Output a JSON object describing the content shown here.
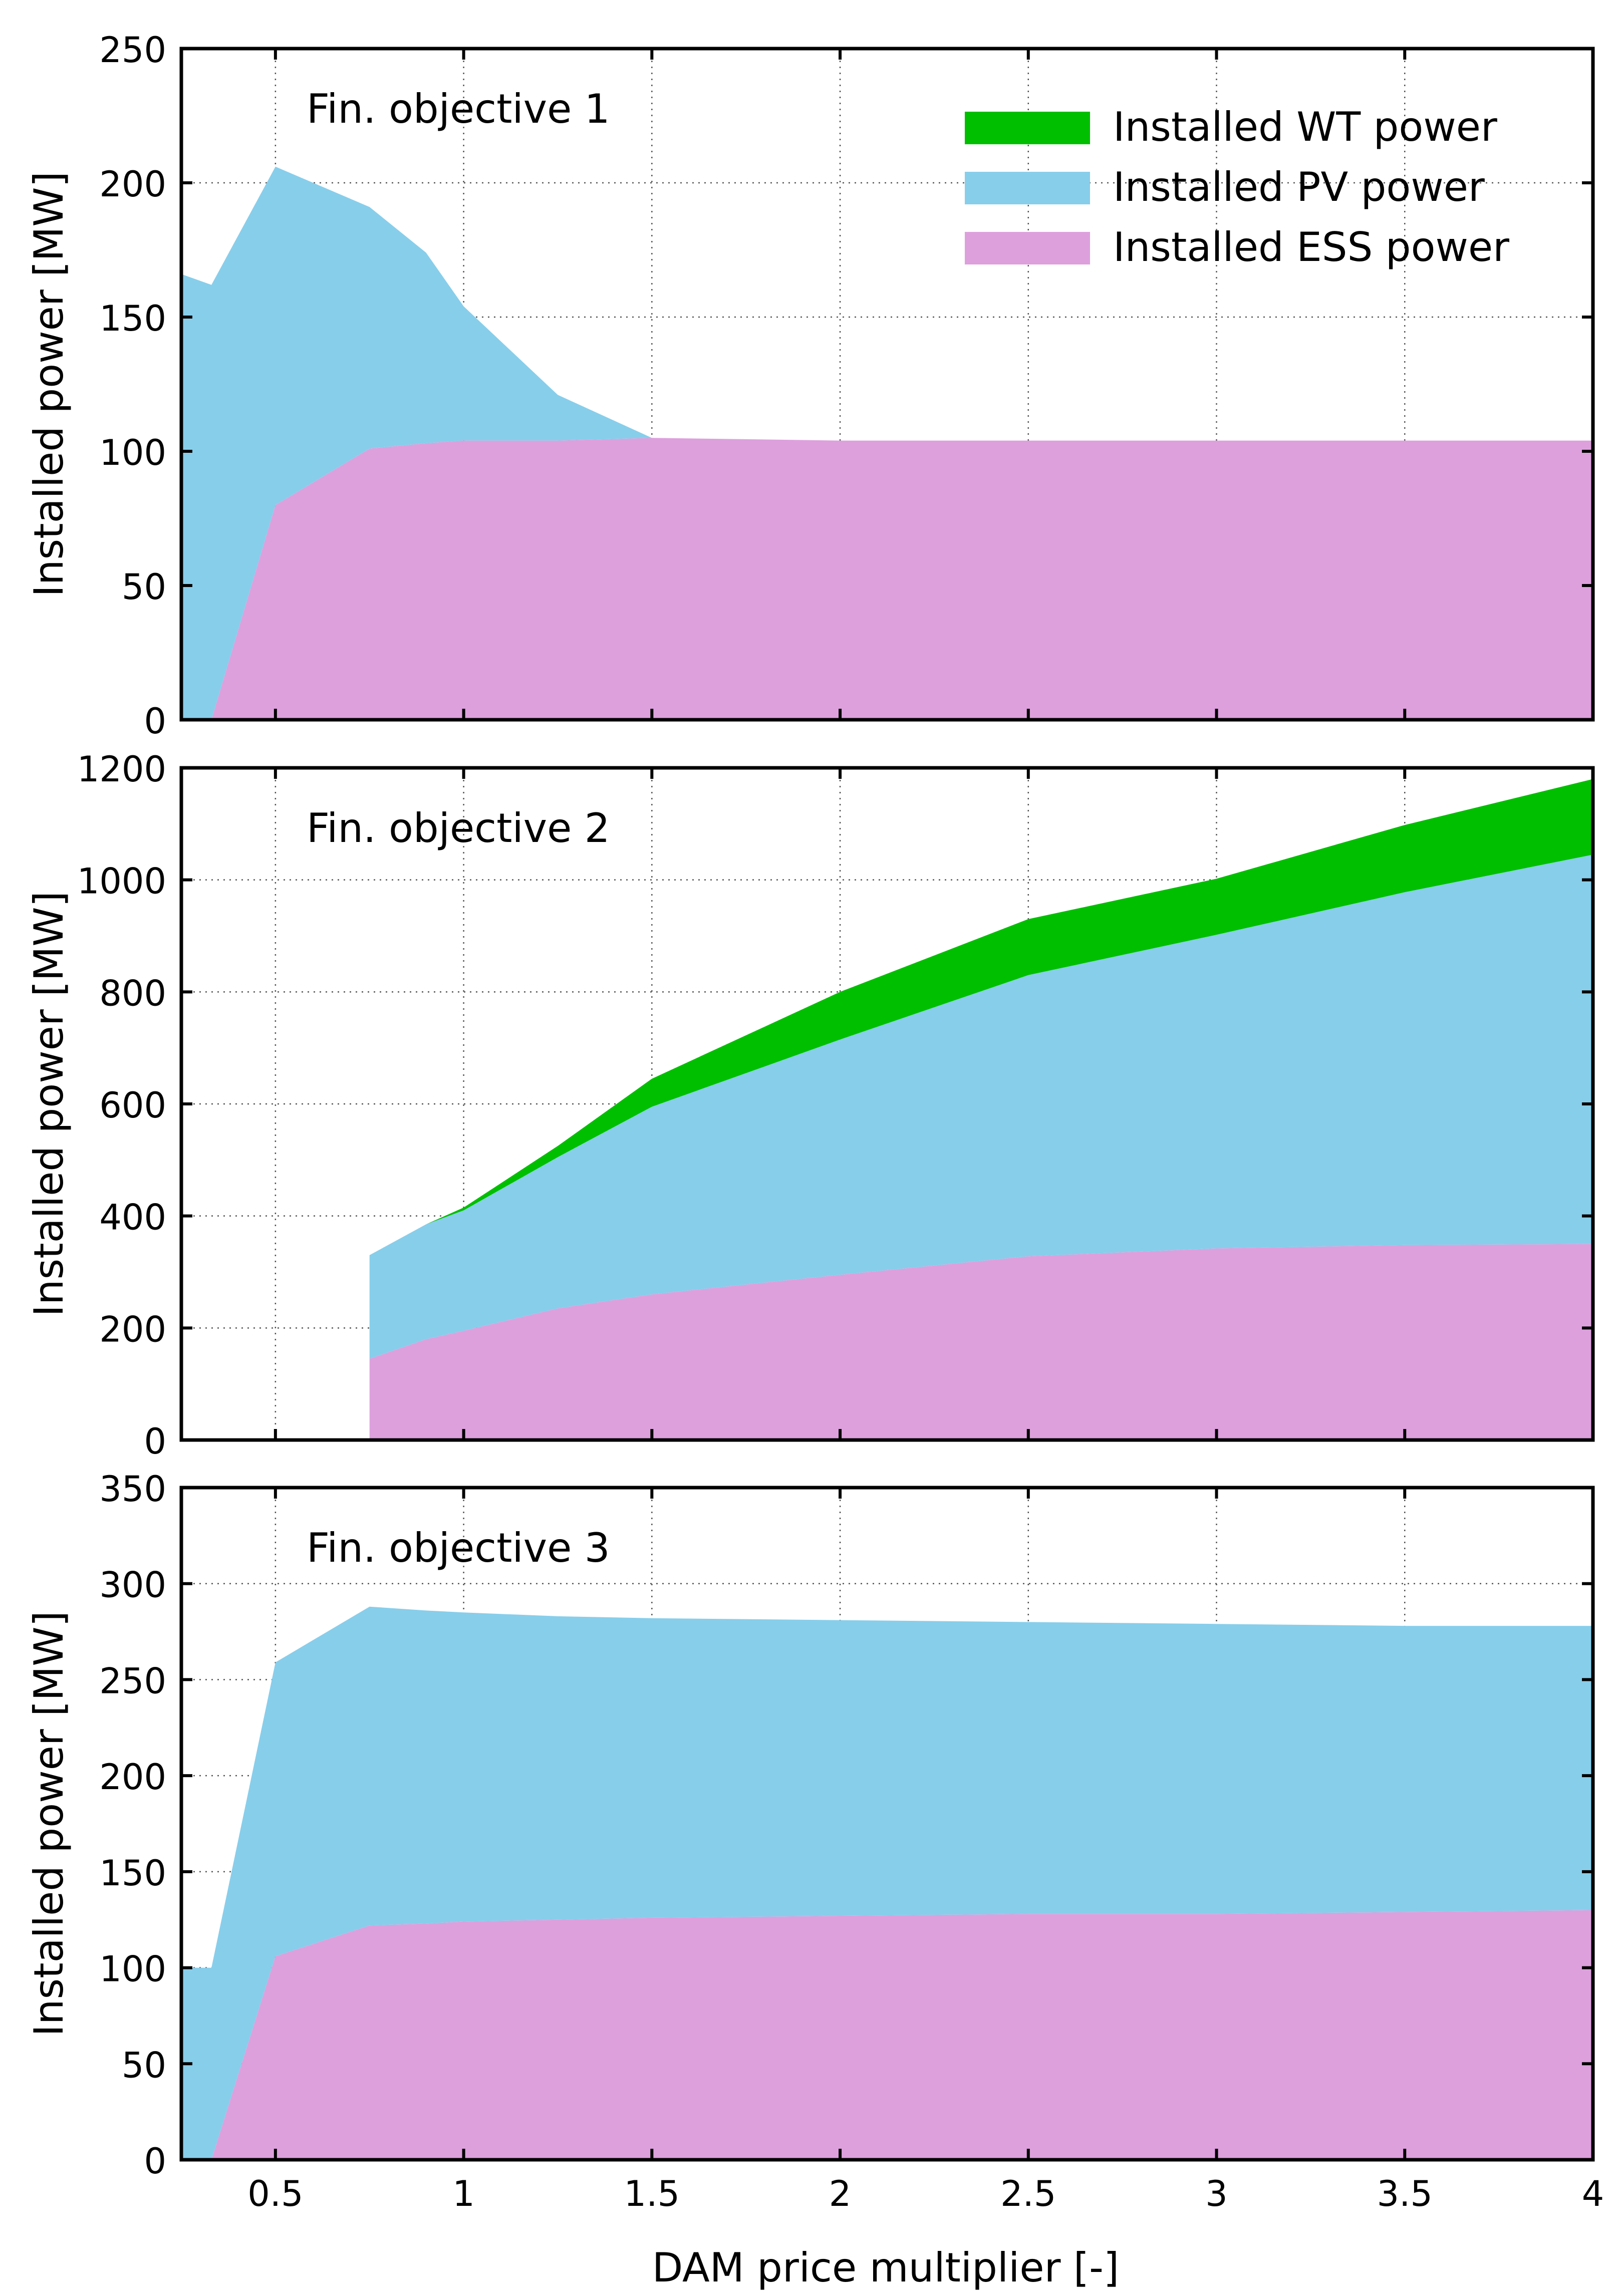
{
  "figure": {
    "xlabel": "DAM price multiplier [-]"
  },
  "legend": {
    "items": [
      {
        "label": "Installed WT power",
        "color": "#00bf00"
      },
      {
        "label": "Installed PV power",
        "color": "#87ceeb"
      },
      {
        "label": "Installed ESS power",
        "color": "#dda0dd"
      }
    ]
  },
  "chart_data": [
    {
      "type": "area",
      "title": "Fin. objective 1",
      "ylabel": "Installed power [MW]",
      "xlim": [
        0.25,
        4
      ],
      "ylim": [
        0,
        250
      ],
      "xticks": [
        0.5,
        1,
        1.5,
        2,
        2.5,
        3,
        3.5,
        4
      ],
      "xtick_labels": [
        "0.5",
        "1",
        "1.5",
        "2",
        "2.5",
        "3",
        "3.5",
        "4"
      ],
      "yticks": [
        0,
        50,
        100,
        150,
        200,
        250
      ],
      "ytick_labels": [
        "0",
        "50",
        "100",
        "150",
        "200",
        "250"
      ],
      "grid": true,
      "stacked": true,
      "legend_position": "top-right",
      "x": [
        0.25,
        0.33,
        0.5,
        0.75,
        0.9,
        1.0,
        1.25,
        1.5,
        2.0,
        2.5,
        3.0,
        3.5,
        4.0
      ],
      "series": [
        {
          "name": "Installed ESS power",
          "color": "#dda0dd",
          "values": [
            0,
            0,
            80,
            101,
            103,
            104,
            104,
            105,
            104,
            104,
            104,
            104,
            104
          ]
        },
        {
          "name": "Installed PV power",
          "color": "#87ceeb",
          "values": [
            166,
            162,
            126,
            90,
            71,
            50,
            17,
            0,
            0,
            0,
            0,
            0,
            0
          ]
        },
        {
          "name": "Installed WT power",
          "color": "#00bf00",
          "values": [
            0,
            0,
            0,
            0,
            0,
            0,
            0,
            0,
            0,
            0,
            0,
            0,
            0
          ]
        }
      ]
    },
    {
      "type": "area",
      "title": "Fin. objective 2",
      "ylabel": "Installed power [MW]",
      "xlim": [
        0.25,
        4
      ],
      "ylim": [
        0,
        1200
      ],
      "xticks": [
        0.5,
        1,
        1.5,
        2,
        2.5,
        3,
        3.5,
        4
      ],
      "xtick_labels": [
        "0.5",
        "1",
        "1.5",
        "2",
        "2.5",
        "3",
        "3.5",
        "4"
      ],
      "yticks": [
        0,
        200,
        400,
        600,
        800,
        1000,
        1200
      ],
      "ytick_labels": [
        "0",
        "200",
        "400",
        "600",
        "800",
        "1000",
        "1200"
      ],
      "grid": true,
      "stacked": true,
      "x": [
        0.75,
        0.9,
        1.0,
        1.25,
        1.5,
        2.0,
        2.5,
        3.0,
        3.5,
        4.0
      ],
      "series": [
        {
          "name": "Installed ESS power",
          "color": "#dda0dd",
          "values": [
            145,
            180,
            195,
            235,
            260,
            295,
            328,
            342,
            348,
            350
          ]
        },
        {
          "name": "Installed PV power",
          "color": "#87ceeb",
          "values": [
            185,
            205,
            215,
            270,
            335,
            420,
            502,
            560,
            630,
            695
          ]
        },
        {
          "name": "Installed WT power",
          "color": "#00bf00",
          "values": [
            0,
            0,
            5,
            20,
            50,
            85,
            100,
            100,
            120,
            135
          ]
        }
      ]
    },
    {
      "type": "area",
      "title": "Fin. objective 3",
      "ylabel": "Installed power [MW]",
      "xlabel": "DAM price multiplier [-]",
      "xlim": [
        0.25,
        4
      ],
      "ylim": [
        0,
        350
      ],
      "xticks": [
        0.5,
        1,
        1.5,
        2,
        2.5,
        3,
        3.5,
        4
      ],
      "xtick_labels": [
        "0.5",
        "1",
        "1.5",
        "2",
        "2.5",
        "3",
        "3.5",
        "4"
      ],
      "yticks": [
        0,
        50,
        100,
        150,
        200,
        250,
        300,
        350
      ],
      "ytick_labels": [
        "0",
        "50",
        "100",
        "150",
        "200",
        "250",
        "300",
        "350"
      ],
      "grid": true,
      "stacked": true,
      "x": [
        0.25,
        0.33,
        0.5,
        0.75,
        0.9,
        1.0,
        1.25,
        1.5,
        2.0,
        2.5,
        3.0,
        3.5,
        4.0
      ],
      "series": [
        {
          "name": "Installed ESS power",
          "color": "#dda0dd",
          "values": [
            0,
            0,
            106,
            122,
            123,
            124,
            125,
            126,
            127,
            128,
            128,
            129,
            130
          ]
        },
        {
          "name": "Installed PV power",
          "color": "#87ceeb",
          "values": [
            100,
            100,
            153,
            166,
            163,
            161,
            158,
            156,
            154,
            152,
            151,
            149,
            148
          ]
        },
        {
          "name": "Installed WT power",
          "color": "#00bf00",
          "values": [
            0,
            0,
            0,
            0,
            0,
            0,
            0,
            0,
            0,
            0,
            0,
            0,
            0
          ]
        }
      ]
    }
  ]
}
